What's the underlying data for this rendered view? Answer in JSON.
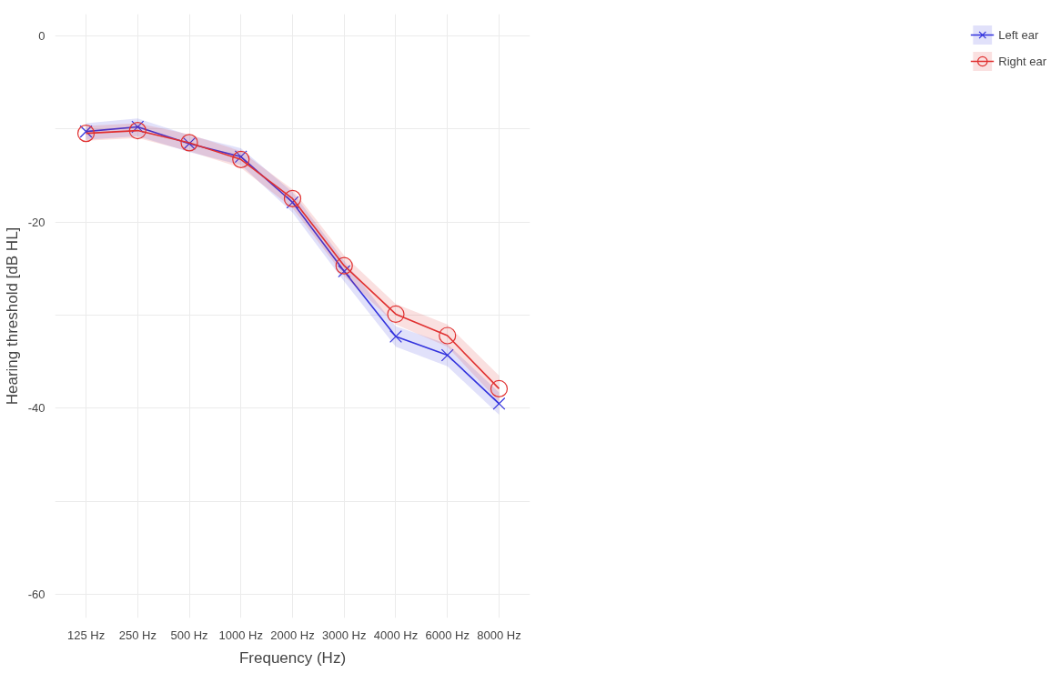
{
  "chart_data": {
    "type": "line",
    "xlabel": "Frequency (Hz)",
    "ylabel": "Hearing threshold [dB HL]",
    "categories": [
      "125 Hz",
      "250 Hz",
      "500 Hz",
      "1000 Hz",
      "2000 Hz",
      "3000 Hz",
      "4000 Hz",
      "6000 Hz",
      "8000 Hz"
    ],
    "series": [
      {
        "name": "Left ear",
        "color": "#3333dd",
        "marker": "cross",
        "values": [
          -10.3,
          -9.8,
          -11.6,
          -13.0,
          -17.9,
          -25.3,
          -32.3,
          -34.3,
          -39.5
        ],
        "lower": [
          -11.2,
          -10.8,
          -12.5,
          -13.9,
          -19.0,
          -26.4,
          -33.4,
          -35.5,
          -40.7
        ],
        "upper": [
          -9.4,
          -8.9,
          -10.7,
          -12.1,
          -16.8,
          -24.2,
          -31.2,
          -33.1,
          -38.3
        ]
      },
      {
        "name": "Right ear",
        "color": "#e03030",
        "marker": "circle",
        "values": [
          -10.5,
          -10.2,
          -11.5,
          -13.3,
          -17.5,
          -24.7,
          -29.9,
          -32.2,
          -37.9
        ],
        "lower": [
          -11.3,
          -11.0,
          -12.4,
          -14.2,
          -18.5,
          -25.8,
          -31.0,
          -33.4,
          -39.3
        ],
        "upper": [
          -9.7,
          -9.4,
          -10.6,
          -12.4,
          -16.5,
          -23.6,
          -28.8,
          -31.0,
          -36.5
        ]
      }
    ],
    "ylim": [
      -62.5,
      2.3
    ],
    "yticks": [
      {
        "value": -60,
        "label": "-60"
      },
      {
        "value": -50,
        "label": null
      },
      {
        "value": -40,
        "label": "-40"
      },
      {
        "value": -30,
        "label": null
      },
      {
        "value": -20,
        "label": "-20"
      },
      {
        "value": -10,
        "label": null
      },
      0
    ],
    "grid": true,
    "legend": "right"
  }
}
